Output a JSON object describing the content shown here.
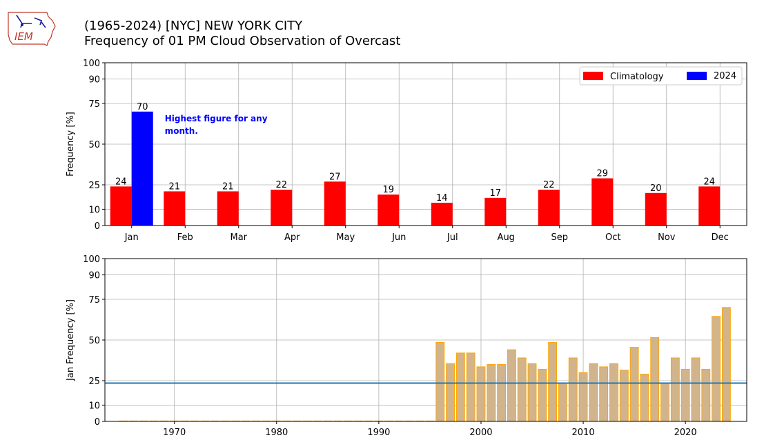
{
  "logo": {
    "text": "IEM"
  },
  "title": {
    "line1": "(1965-2024) [NYC] NEW YORK CITY",
    "line2": "Frequency of 01 PM Cloud Observation of Overcast"
  },
  "colors": {
    "climatology": "#ff0000",
    "current": "#0000ff",
    "annual_fill": "#d2b48c",
    "annual_edge": "#ffa500",
    "average_line": "#1f77b4",
    "annotation": "#0000ff"
  },
  "chart_data": [
    {
      "type": "bar",
      "ylabel": "Frequency [%]",
      "ylim": [
        0,
        100
      ],
      "yticks": [
        0,
        10,
        25,
        50,
        75,
        90,
        100
      ],
      "grid": true,
      "legend_position": "top-right",
      "categories": [
        "Jan",
        "Feb",
        "Mar",
        "Apr",
        "May",
        "Jun",
        "Jul",
        "Aug",
        "Sep",
        "Oct",
        "Nov",
        "Dec"
      ],
      "series": [
        {
          "name": "Climatology",
          "values": [
            24,
            21,
            21,
            22,
            27,
            19,
            14,
            17,
            22,
            29,
            20,
            24
          ],
          "labels": [
            "24",
            "21",
            "21",
            "22",
            "27",
            "19",
            "14",
            "17",
            "22",
            "29",
            "20",
            "24"
          ]
        },
        {
          "name": "2024",
          "values": [
            70,
            null,
            null,
            null,
            null,
            null,
            null,
            null,
            null,
            null,
            null,
            null
          ],
          "labels": [
            "70",
            "",
            "",
            "",
            "",
            "",
            "",
            "",
            "",
            "",
            "",
            ""
          ]
        }
      ],
      "annotation": {
        "text_line1": "Highest figure for any",
        "text_line2": "month."
      }
    },
    {
      "type": "bar",
      "ylabel": "Jan Frequency [%]",
      "ylim": [
        0,
        100
      ],
      "xlim": [
        1963.2,
        2026
      ],
      "yticks": [
        0,
        10,
        25,
        50,
        75,
        90,
        100
      ],
      "xticks": [
        1970,
        1980,
        1990,
        2000,
        2010,
        2020
      ],
      "grid": true,
      "average_line": 23.5,
      "x": [
        1965,
        1966,
        1967,
        1968,
        1969,
        1970,
        1971,
        1972,
        1973,
        1974,
        1975,
        1976,
        1977,
        1978,
        1979,
        1980,
        1981,
        1982,
        1983,
        1984,
        1985,
        1986,
        1987,
        1988,
        1989,
        1990,
        1991,
        1992,
        1993,
        1994,
        1995,
        1996,
        1997,
        1998,
        1999,
        2000,
        2001,
        2002,
        2003,
        2004,
        2005,
        2006,
        2007,
        2008,
        2009,
        2010,
        2011,
        2012,
        2013,
        2014,
        2015,
        2016,
        2017,
        2018,
        2019,
        2020,
        2021,
        2022,
        2023,
        2024
      ],
      "values": [
        0,
        0,
        0,
        0,
        0,
        0,
        0,
        0,
        0,
        0,
        0,
        0,
        0,
        0,
        0,
        0,
        0,
        0,
        0,
        0,
        0,
        0,
        0,
        0,
        0,
        0,
        0,
        0,
        0,
        0,
        0,
        48.5,
        35.5,
        42,
        42,
        33.5,
        35,
        35,
        44,
        39,
        35.5,
        32,
        48.5,
        23.5,
        39,
        30,
        35.5,
        33.5,
        35.5,
        31.5,
        45.5,
        29,
        51.5,
        23.5,
        39,
        32,
        39,
        32,
        64.5,
        70
      ]
    }
  ]
}
